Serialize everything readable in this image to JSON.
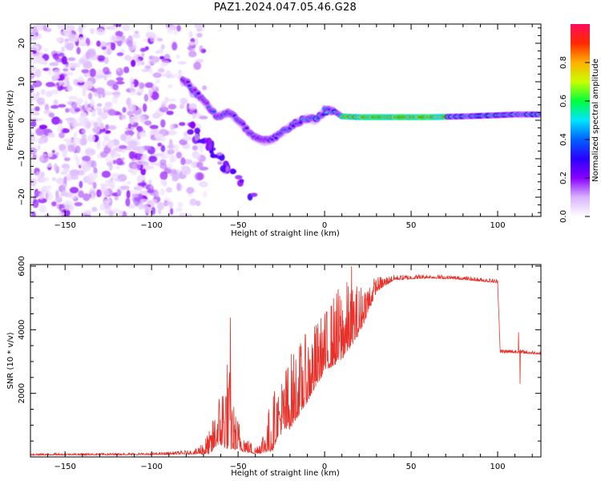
{
  "title": "PAZ1.2024.047.05.46.G28",
  "chart_data": [
    {
      "type": "heatmap",
      "title": "PAZ1.2024.047.05.46.G28",
      "xlabel": "Height of straight line (km)",
      "ylabel": "Frequency (Hz)",
      "xlim": [
        -170,
        125
      ],
      "ylim": [
        -25,
        25
      ],
      "x_ticks": [
        -150,
        -100,
        -50,
        0,
        50,
        100
      ],
      "y_ticks": [
        -20,
        -10,
        0,
        10,
        20
      ],
      "colorbar": {
        "label": "Normalized spectral amplitude",
        "range": [
          0,
          1
        ],
        "ticks": [
          "0.0",
          "0.2",
          "0.4",
          "0.6",
          "0.8"
        ],
        "colormap": "gist_rainbow (white → purple → blue → cyan → green → yellow → orange → red → magenta)",
        "colors": [
          "#ffffff",
          "#d9b3ff",
          "#8a00ff",
          "#2a00ff",
          "#0060ff",
          "#00e5ff",
          "#00ff3c",
          "#c8ff00",
          "#ffb000",
          "#ff2a00",
          "#ff0a5a"
        ]
      },
      "ridge_center_hz": {
        "x": [
          -80,
          -72,
          -62,
          -55,
          -48,
          -42,
          -35,
          -30,
          -24,
          -18,
          -10,
          -5,
          0,
          5,
          10,
          20,
          40,
          60,
          80,
          100,
          110,
          124
        ],
        "y": [
          10,
          6,
          1,
          2,
          -1,
          -4,
          -5.5,
          -5,
          -3,
          -1,
          0.5,
          0,
          2.5,
          2.5,
          1,
          0.8,
          0.8,
          0.8,
          1,
          1.3,
          1.5,
          1.5
        ],
        "peak_amplitude_region_km": [
          10,
          70
        ],
        "noise_region_km": [
          -170,
          -75
        ]
      },
      "secondary_branch": {
        "x": [
          -78,
          -72,
          -68,
          -64,
          -58,
          -52,
          -46,
          -40
        ],
        "y": [
          -2,
          -4,
          -6,
          -8,
          -12,
          -14,
          -17,
          -21
        ]
      }
    },
    {
      "type": "line",
      "xlabel": "Height of straight line (km)",
      "ylabel": "SNR (10 * v/v)",
      "xlim": [
        -170,
        125
      ],
      "ylim": [
        0,
        6050
      ],
      "x_ticks": [
        -150,
        -100,
        -50,
        0,
        50,
        100
      ],
      "y_ticks": [
        2000,
        4000,
        6000
      ],
      "line_color": "#e8312a",
      "envelope": {
        "x": [
          -170,
          -100,
          -75,
          -66,
          -62,
          -56,
          -52,
          -45,
          -40,
          -35,
          -30,
          -27,
          -20,
          -10,
          0,
          10,
          20,
          30,
          40,
          60,
          80,
          100,
          101.5,
          110,
          124
        ],
        "base": [
          70,
          80,
          120,
          250,
          700,
          900,
          500,
          250,
          150,
          300,
          600,
          1000,
          1400,
          2200,
          3100,
          3600,
          4200,
          5300,
          5600,
          5650,
          5600,
          5500,
          3300,
          3300,
          3250
        ],
        "amp": [
          40,
          40,
          80,
          500,
          900,
          1900,
          800,
          300,
          150,
          500,
          1200,
          1000,
          1500,
          1400,
          1200,
          1600,
          1000,
          300,
          100,
          80,
          70,
          80,
          80,
          80,
          60
        ]
      },
      "spikes": [
        {
          "x": -54.5,
          "y": 4380
        },
        {
          "x": 15.5,
          "y": 6000
        },
        {
          "x": 112,
          "y": 3920
        },
        {
          "x": 113,
          "y": 2300
        }
      ]
    }
  ]
}
